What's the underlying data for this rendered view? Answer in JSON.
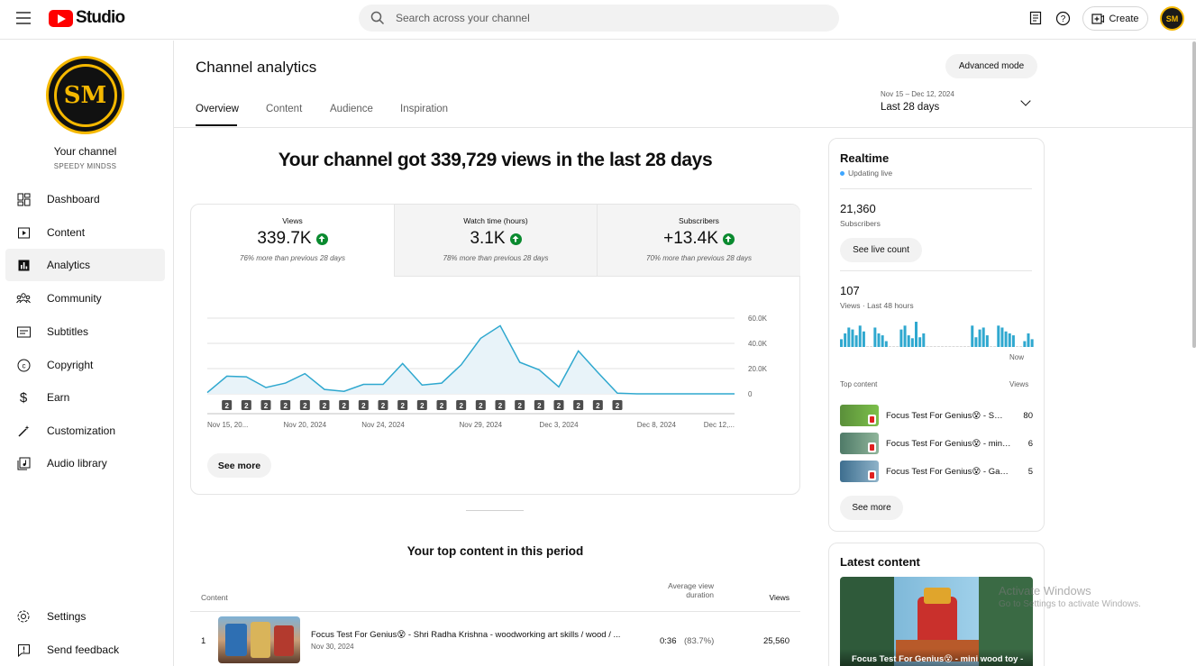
{
  "header": {
    "brand": "Studio",
    "search_placeholder": "Search across your channel",
    "create_label": "Create",
    "avatar_initials": "SM"
  },
  "sidebar": {
    "avatar_initials": "SM",
    "your_channel": "Your channel",
    "channel_name": "SPEEDY MINDSS",
    "items": [
      {
        "label": "Dashboard",
        "icon": "dashboard-icon"
      },
      {
        "label": "Content",
        "icon": "content-icon"
      },
      {
        "label": "Analytics",
        "icon": "analytics-icon",
        "active": true
      },
      {
        "label": "Community",
        "icon": "community-icon"
      },
      {
        "label": "Subtitles",
        "icon": "subtitles-icon"
      },
      {
        "label": "Copyright",
        "icon": "copyright-icon"
      },
      {
        "label": "Earn",
        "icon": "earn-icon"
      },
      {
        "label": "Customization",
        "icon": "customization-icon"
      },
      {
        "label": "Audio library",
        "icon": "audio-library-icon"
      }
    ],
    "bottom": [
      {
        "label": "Settings",
        "icon": "gear-icon"
      },
      {
        "label": "Send feedback",
        "icon": "feedback-icon"
      }
    ]
  },
  "page": {
    "title": "Channel analytics",
    "advanced_mode": "Advanced mode",
    "tabs": [
      "Overview",
      "Content",
      "Audience",
      "Inspiration"
    ],
    "active_tab": "Overview",
    "date_range": "Nov 15 – Dec 12, 2024",
    "period": "Last 28 days",
    "headline": "Your channel got 339,729 views in the last 28 days"
  },
  "metrics": [
    {
      "label": "Views",
      "value": "339.7K",
      "compare": "76% more than previous 28 days"
    },
    {
      "label": "Watch time (hours)",
      "value": "3.1K",
      "compare": "78% more than previous 28 days"
    },
    {
      "label": "Subscribers",
      "value": "+13.4K",
      "compare": "70% more than previous 28 days"
    }
  ],
  "chart_data": {
    "type": "area",
    "x": [
      "Nov 15",
      "Nov 16",
      "Nov 17",
      "Nov 18",
      "Nov 19",
      "Nov 20",
      "Nov 21",
      "Nov 22",
      "Nov 23",
      "Nov 24",
      "Nov 25",
      "Nov 26",
      "Nov 27",
      "Nov 28",
      "Nov 29",
      "Nov 30",
      "Dec 1",
      "Dec 2",
      "Dec 3",
      "Dec 4",
      "Dec 5",
      "Dec 6",
      "Dec 7",
      "Dec 8",
      "Dec 9",
      "Dec 10",
      "Dec 11",
      "Dec 12"
    ],
    "values": [
      1000,
      14000,
      13500,
      5000,
      8500,
      16000,
      3500,
      2000,
      7500,
      7500,
      24000,
      7000,
      8500,
      23000,
      44000,
      54000,
      25000,
      19000,
      5500,
      34000,
      17000,
      500,
      0,
      0,
      0,
      0,
      0,
      0
    ],
    "x_tick_labels": [
      "Nov 15, 20...",
      "Nov 20, 2024",
      "Nov 24, 2024",
      "Nov 29, 2024",
      "Dec 3, 2024",
      "Dec 8, 2024",
      "Dec 12,..."
    ],
    "y_ticks": [
      "60.0K",
      "40.0K",
      "20.0K",
      "0"
    ],
    "ylim": [
      0,
      60000
    ],
    "marker_label": "2",
    "marker_count": 21,
    "grid": true,
    "see_more": "See more"
  },
  "top_content": {
    "title": "Your top content in this period",
    "headers": {
      "content": "Content",
      "avd_line1": "Average view",
      "avd_line2": "duration",
      "views": "Views"
    },
    "rows": [
      {
        "rank": "1",
        "title": "Focus Test For Genius😵 - Shri Radha Krishna - woodworking art skills / wood / ...",
        "date": "Nov 30, 2024",
        "avd": "0:36",
        "avd_pct": "(83.7%)",
        "views": "25,560"
      }
    ]
  },
  "realtime": {
    "title": "Realtime",
    "status": "Updating live",
    "subs_value": "21,360",
    "subs_label": "Subscribers",
    "live_count_btn": "See live count",
    "views_value": "107",
    "views_label": "Views · Last 48 hours",
    "now_label": "Now",
    "bars": [
      8,
      14,
      20,
      18,
      12,
      22,
      16,
      0,
      0,
      20,
      14,
      12,
      6,
      0,
      0,
      0,
      18,
      22,
      12,
      9,
      26,
      10,
      14,
      0,
      0,
      0,
      0,
      0,
      0,
      0,
      0,
      0,
      0,
      0,
      0,
      22,
      10,
      18,
      20,
      12,
      0,
      0,
      22,
      20,
      16,
      14,
      12,
      0,
      0,
      6,
      14,
      8
    ],
    "top_content_label": "Top content",
    "views_col": "Views",
    "items": [
      {
        "title": "Focus Test For Genius😵 - Shri Radha Krishna - woodworking art",
        "views": "80"
      },
      {
        "title": "Focus Test For Genius😵 - mini wood toy - woodworking art",
        "views": "6"
      },
      {
        "title": "Focus Test For Genius😵 - Game - woodworking art skills",
        "views": "5"
      }
    ],
    "see_more": "See more"
  },
  "latest": {
    "title": "Latest content",
    "video_title": "Focus Test For Genius😵 - mini wood toy -"
  },
  "watermark": {
    "line1": "Activate Windows",
    "line2": "Go to Settings to activate Windows."
  }
}
